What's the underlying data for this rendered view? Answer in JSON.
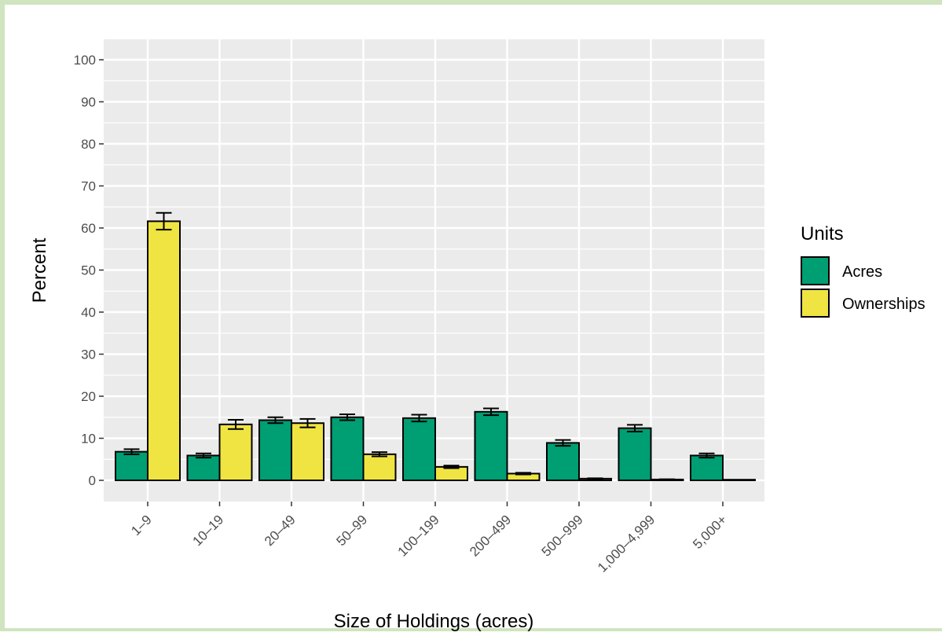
{
  "chart_data": {
    "type": "bar",
    "title": "",
    "xlabel": "Size of Holdings (acres)",
    "ylabel": "Percent",
    "ylim": [
      0,
      100
    ],
    "yticks": [
      0,
      10,
      20,
      30,
      40,
      50,
      60,
      70,
      80,
      90,
      100
    ],
    "grid": true,
    "legend_position": "right",
    "legend_title": "Units",
    "categories": [
      "1–9",
      "10–19",
      "20–49",
      "50–99",
      "100–199",
      "200–499",
      "500–999",
      "1,000–4,999",
      "5,000+"
    ],
    "series": [
      {
        "name": "Acres",
        "color": "#009e73",
        "values": [
          6.8,
          5.9,
          14.3,
          15.0,
          14.8,
          16.3,
          8.9,
          12.4,
          5.9
        ],
        "error": [
          0.6,
          0.5,
          0.7,
          0.7,
          0.8,
          0.8,
          0.7,
          0.8,
          0.5
        ]
      },
      {
        "name": "Ownerships",
        "color": "#f0e442",
        "values": [
          61.6,
          13.3,
          13.6,
          6.2,
          3.2,
          1.6,
          0.4,
          0.2,
          0.05
        ],
        "error": [
          2.0,
          1.1,
          1.0,
          0.5,
          0.3,
          0.2,
          0.1,
          0.05,
          0.02
        ]
      }
    ]
  }
}
